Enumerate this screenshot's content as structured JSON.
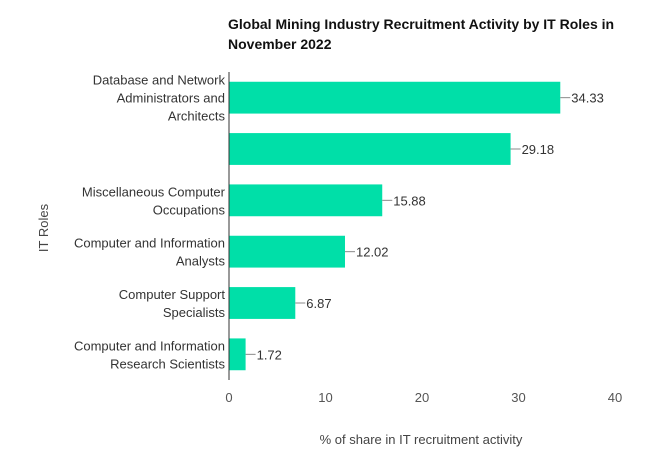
{
  "chart_data": {
    "type": "bar",
    "orientation": "horizontal",
    "title": "Global Mining Industry Recruitment Activity by IT Roles in November 2022",
    "xlabel": "% of share in IT recruitment activity",
    "ylabel": "IT Roles",
    "xlim": [
      0,
      40
    ],
    "xticks": [
      0,
      10,
      20,
      30,
      40
    ],
    "grid": false,
    "categories": [
      "Database and Network Administrators and Architects",
      "",
      "Miscellaneous Computer Occupations",
      "Computer and Information Analysts",
      "Computer Support Specialists",
      "Computer and Information Research Scientists"
    ],
    "category_lines": [
      [
        "Database and Network",
        "Administrators and",
        "Architects"
      ],
      [],
      [
        "Miscellaneous Computer",
        "Occupations"
      ],
      [
        "Computer and Information",
        "Analysts"
      ],
      [
        "Computer Support",
        "Specialists"
      ],
      [
        "Computer and Information",
        "Research Scientists"
      ]
    ],
    "values": [
      34.33,
      29.18,
      15.88,
      12.02,
      6.87,
      1.72
    ],
    "value_labels": [
      "34.33",
      "29.18",
      "15.88",
      "12.02",
      "6.87",
      "1.72"
    ],
    "colors": {
      "bar": "#00DFA8",
      "axis": "#333333"
    }
  }
}
